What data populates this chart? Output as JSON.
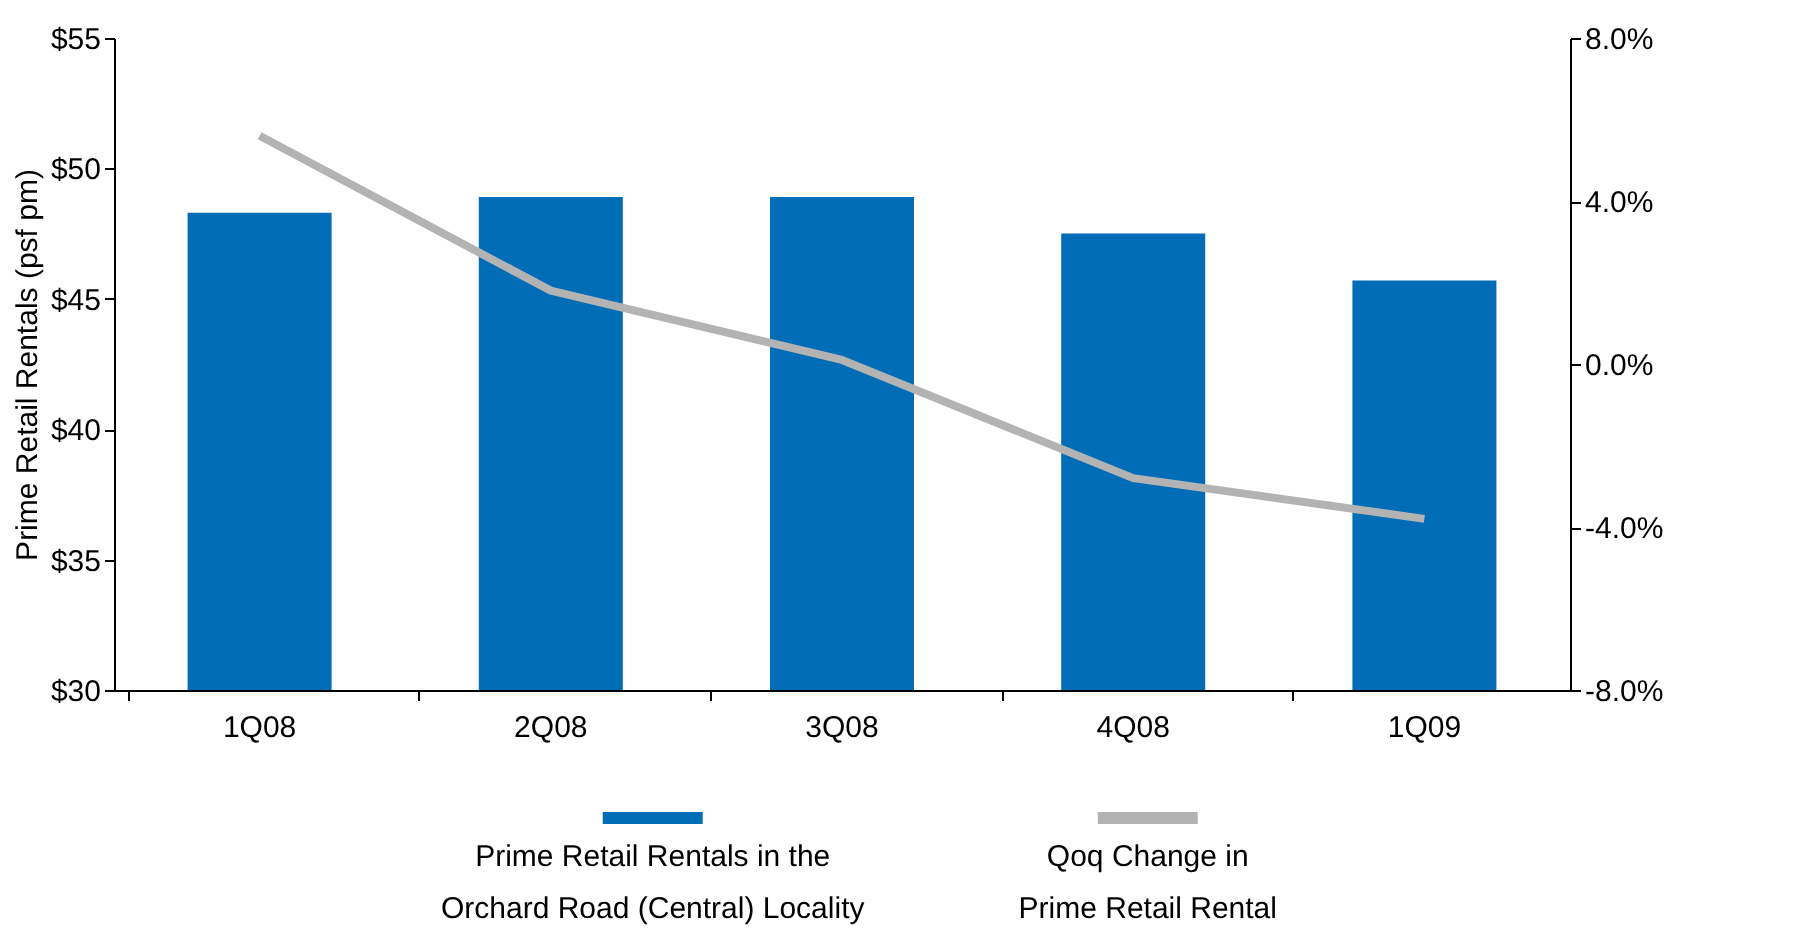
{
  "chart_data": {
    "type": "bar",
    "ylabel": "Prime Retail Rentals (psf pm)",
    "categories": [
      "1Q08",
      "2Q08",
      "3Q08",
      "4Q08",
      "1Q09"
    ],
    "series": [
      {
        "name": "Prime Retail Rentals in the Orchard Road (Central) Locality",
        "color": "#006db6",
        "values": [
          48.3,
          48.9,
          48.9,
          47.5,
          45.7
        ]
      },
      {
        "name": "Qoq Change in Prime Retail Rental",
        "type": "line",
        "axis": "y2",
        "color": "#b3b3b3",
        "values": [
          5.6,
          1.8,
          0.1,
          -2.8,
          -3.8
        ]
      }
    ],
    "ylim": [
      30,
      55
    ],
    "yticks": [
      {
        "value": 30,
        "label": "$30"
      },
      {
        "value": 35,
        "label": "$35"
      },
      {
        "value": 40,
        "label": "$40"
      },
      {
        "value": 45,
        "label": "$45"
      },
      {
        "value": 50,
        "label": "$50"
      },
      {
        "value": 55,
        "label": "$55"
      }
    ],
    "y2lim": [
      -8,
      8
    ],
    "y2ticks": [
      {
        "value": -8,
        "label": "-8.0%"
      },
      {
        "value": -4,
        "label": "-4.0%"
      },
      {
        "value": 0,
        "label": "0.0%"
      },
      {
        "value": 4,
        "label": "4.0%"
      },
      {
        "value": 8,
        "label": "8.0%"
      }
    ],
    "grid": false,
    "legend": "bottom"
  }
}
